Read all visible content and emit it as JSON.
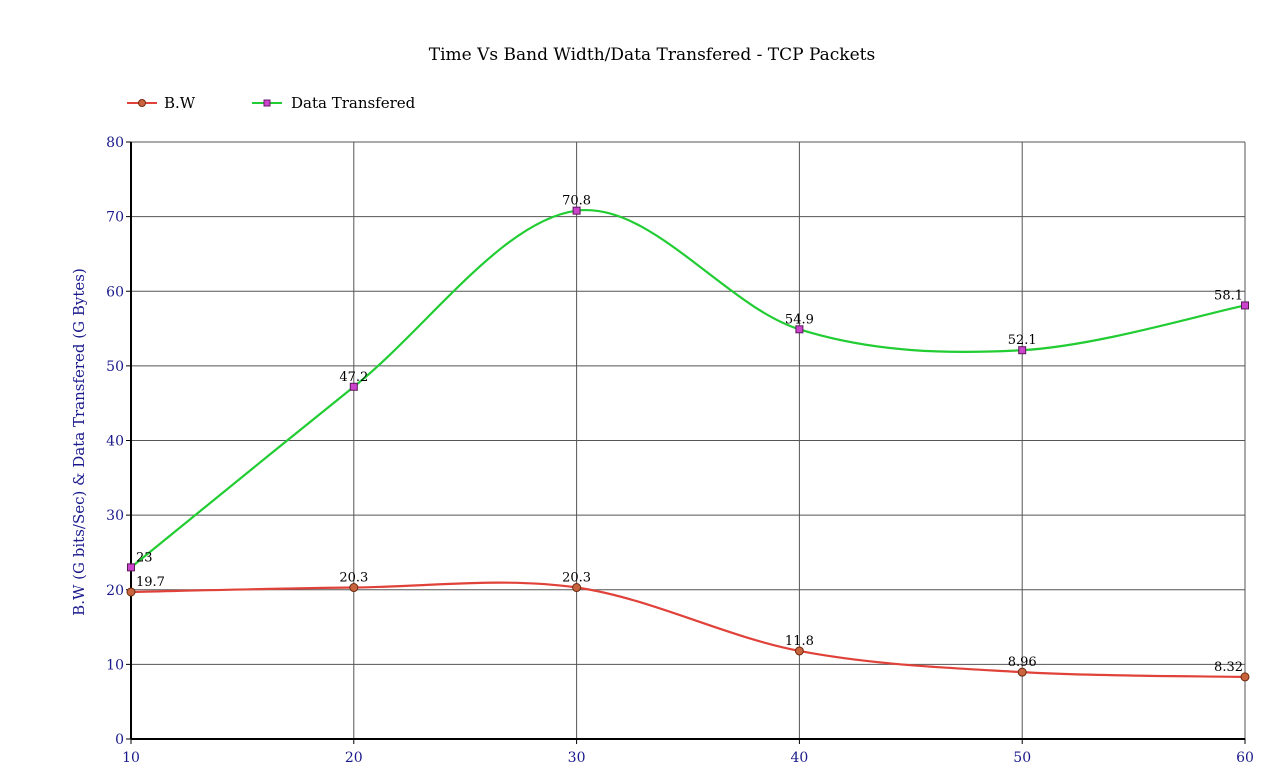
{
  "chart_data": {
    "type": "line",
    "title": "Time Vs Band Width/Data Transfered - TCP Packets",
    "ylabel": "B.W (G bits/Sec) & Data Transfered (G Bytes)",
    "xlabel": "",
    "x": [
      10,
      20,
      30,
      40,
      50,
      60
    ],
    "xticks": [
      "10",
      "20",
      "30",
      "40",
      "50",
      "60"
    ],
    "ylim": [
      0,
      80
    ],
    "yticks": [
      "0",
      "10",
      "20",
      "30",
      "40",
      "50",
      "60",
      "70",
      "80"
    ],
    "grid": true,
    "legend": "top-left",
    "series": [
      {
        "name": "B.W",
        "values": [
          19.7,
          20.3,
          20.3,
          11.8,
          8.96,
          8.32
        ],
        "labels": [
          "19.7",
          "20.3",
          "20.3",
          "11.8",
          "8.96",
          "8.32"
        ],
        "color": "#e0423a",
        "marker": "circle",
        "marker_fill": "#c8653e"
      },
      {
        "name": "Data Transfered",
        "values": [
          23,
          47.2,
          70.8,
          54.9,
          52.1,
          58.1
        ],
        "labels": [
          "23",
          "47.2",
          "70.8",
          "54.9",
          "52.1",
          "58.1"
        ],
        "color": "#22cc33",
        "marker": "square",
        "marker_fill": "#cc44cc"
      }
    ]
  }
}
